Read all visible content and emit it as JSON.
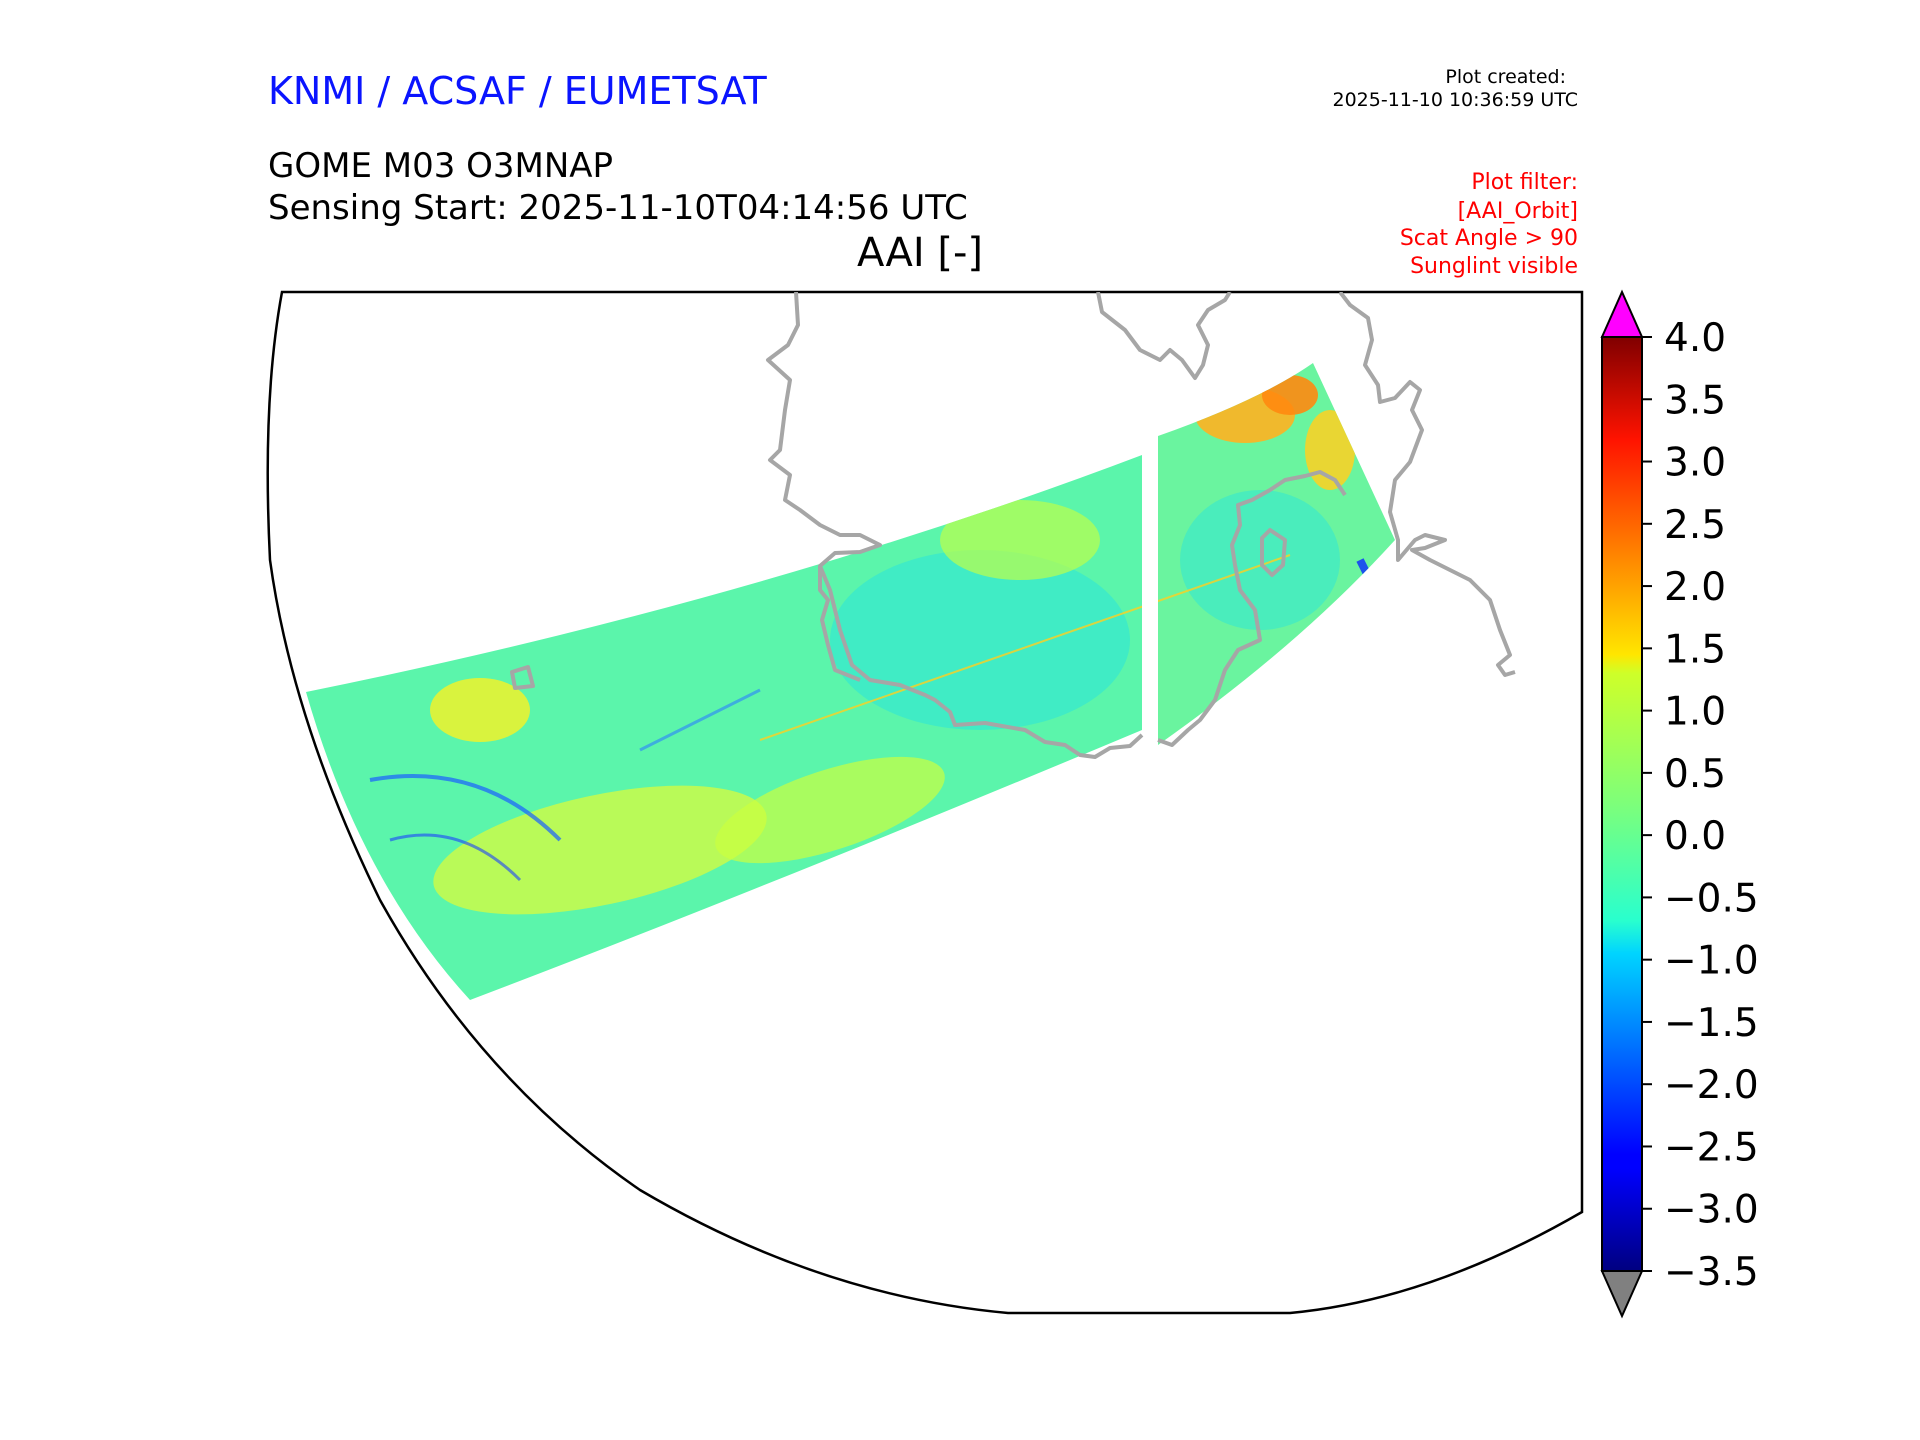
{
  "header": {
    "organization": "KNMI / ACSAF / EUMETSAT",
    "plot_created_label": "Plot created:",
    "plot_created_time": "2025-11-10 10:36:59 UTC",
    "product": "GOME M03 O3MNAP",
    "sensing_start": "Sensing Start: 2025-11-10T04:14:56 UTC",
    "plot_title": "AAI [-]"
  },
  "plot_filter": [
    "Plot filter:",
    "[AAI_Orbit]",
    "Scat Angle > 90",
    "Sunglint visible"
  ],
  "colorbar": {
    "min": -3.5,
    "max": 4.0,
    "ticks": [
      "4.0",
      "3.5",
      "3.0",
      "2.5",
      "2.0",
      "1.5",
      "1.0",
      "0.5",
      "0.0",
      "−0.5",
      "−1.0",
      "−1.5",
      "−2.0",
      "−2.5",
      "−3.0",
      "−3.5"
    ],
    "colormap": "jet",
    "over_color": "#ff00ff",
    "under_color": "#808080"
  },
  "colors": {
    "coastline": "#a6a6a6",
    "title": "#0a14ff",
    "filter_text": "#ff0000"
  }
}
